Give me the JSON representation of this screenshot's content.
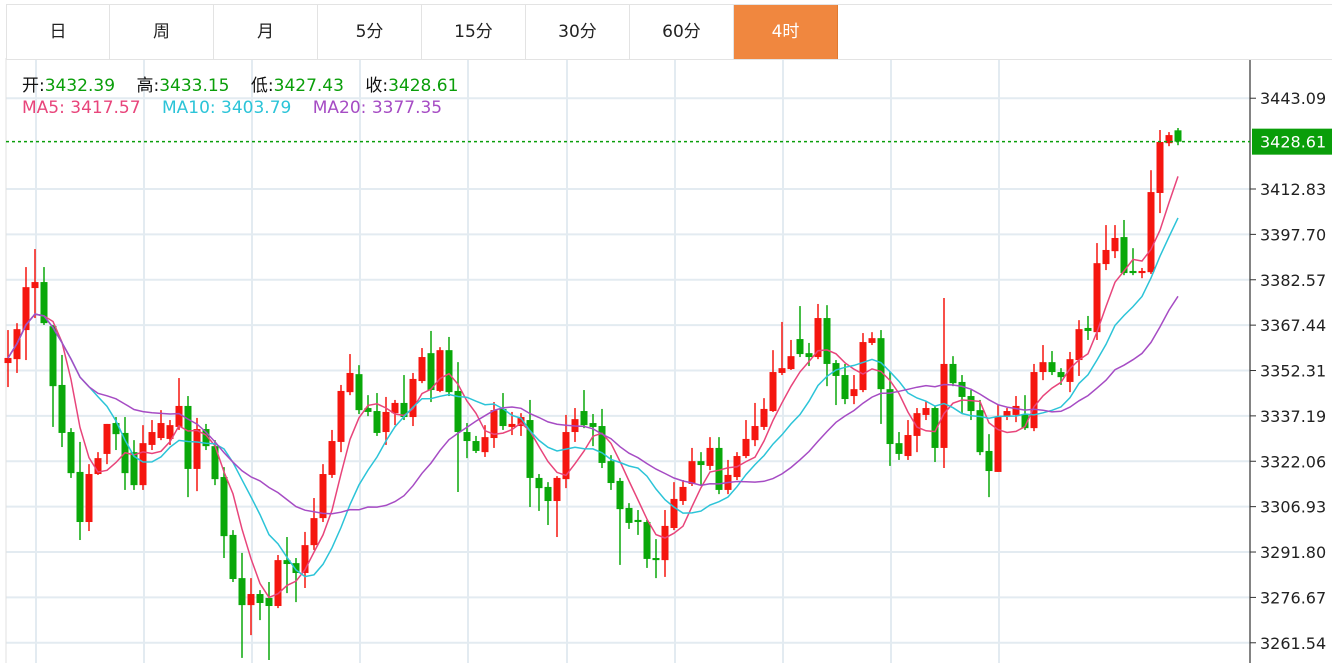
{
  "tabs": [
    {
      "label": "日",
      "active": false
    },
    {
      "label": "周",
      "active": false
    },
    {
      "label": "月",
      "active": false
    },
    {
      "label": "5分",
      "active": false
    },
    {
      "label": "15分",
      "active": false
    },
    {
      "label": "30分",
      "active": false
    },
    {
      "label": "60分",
      "active": false
    },
    {
      "label": "4时",
      "active": true
    }
  ],
  "ohlc_info": {
    "open_label": "开:",
    "open": "3432.39",
    "high_label": "高:",
    "high": "3433.15",
    "low_label": "低:",
    "low": "3427.43",
    "close_label": "收:",
    "close": "3428.61"
  },
  "ma_info": {
    "ma5_label": "MA5:",
    "ma5": "3417.57",
    "ma10_label": "MA10:",
    "ma10": "3403.79",
    "ma20_label": "MA20:",
    "ma20": "3377.35"
  },
  "colors": {
    "up": "#f5160f",
    "down": "#0aa80a",
    "ma5": "#e8457b",
    "ma10": "#2cc4d8",
    "ma20": "#a64cc4",
    "active_tab": "#f0873f",
    "price_tag": "#0a9e0a",
    "grid": "#e3ebf1"
  },
  "chart_data": {
    "type": "candlestick",
    "title": "",
    "ylim": [
      3254.8,
      3456.5
    ],
    "y_ticks": [
      "3443.09",
      "3412.83",
      "3397.70",
      "3382.57",
      "3367.44",
      "3352.31",
      "3337.19",
      "3322.06",
      "3306.93",
      "3291.80",
      "3276.67",
      "3261.54"
    ],
    "current_price": "3428.61",
    "ma_periods": [
      5,
      10,
      20
    ],
    "ohlc": [
      [
        3354.8,
        3365.8,
        3346.8,
        3356.5
      ],
      [
        3356.1,
        3368.1,
        3351.5,
        3366.1
      ],
      [
        3365.8,
        3386.8,
        3355.8,
        3380.1
      ],
      [
        3379.8,
        3392.8,
        3369.8,
        3381.8
      ],
      [
        3381.8,
        3386.8,
        3367.5,
        3368.1
      ],
      [
        3367.1,
        3367.5,
        3333.5,
        3347.1
      ],
      [
        3347.5,
        3357.5,
        3326.8,
        3331.5
      ],
      [
        3331.8,
        3333.1,
        3316.5,
        3318.1
      ],
      [
        3318.5,
        3328.5,
        3295.8,
        3301.8
      ],
      [
        3301.8,
        3321.1,
        3298.8,
        3317.8
      ],
      [
        3317.8,
        3325.1,
        3317.5,
        3323.1
      ],
      [
        3324.5,
        3334.5,
        3321.1,
        3334.5
      ],
      [
        3334.8,
        3336.8,
        3325.8,
        3331.1
      ],
      [
        3331.5,
        3336.8,
        3312.5,
        3318.1
      ],
      [
        3325.1,
        3329.1,
        3312.5,
        3314.1
      ],
      [
        3314.1,
        3334.1,
        3312.5,
        3328.1
      ],
      [
        3327.5,
        3335.8,
        3325.8,
        3331.8
      ],
      [
        3329.8,
        3339.1,
        3329.1,
        3334.8
      ],
      [
        3329.5,
        3335.8,
        3327.5,
        3334.1
      ],
      [
        3333.5,
        3349.8,
        3332.5,
        3340.5
      ],
      [
        3340.5,
        3343.8,
        3310.1,
        3319.5
      ],
      [
        3319.5,
        3336.5,
        3312.1,
        3332.8
      ],
      [
        3332.8,
        3334.5,
        3325.8,
        3327.1
      ],
      [
        3327.1,
        3329.1,
        3314.1,
        3316.1
      ],
      [
        3316.8,
        3320.1,
        3289.8,
        3297.1
      ],
      [
        3297.5,
        3299.1,
        3281.8,
        3282.8
      ],
      [
        3283.1,
        3291.5,
        3256.5,
        3274.1
      ],
      [
        3274.1,
        3283.1,
        3264.1,
        3277.8
      ],
      [
        3277.8,
        3279.1,
        3269.1,
        3274.8
      ],
      [
        3276.5,
        3281.8,
        3255.8,
        3273.8
      ],
      [
        3273.8,
        3290.8,
        3273.1,
        3289.1
      ],
      [
        3289.1,
        3296.8,
        3278.1,
        3287.8
      ],
      [
        3288.1,
        3289.8,
        3275.1,
        3284.8
      ],
      [
        3284.8,
        3298.5,
        3279.8,
        3294.1
      ],
      [
        3294.1,
        3309.8,
        3292.5,
        3303.1
      ],
      [
        3303.1,
        3321.1,
        3301.8,
        3317.8
      ],
      [
        3317.5,
        3332.5,
        3316.5,
        3328.8
      ],
      [
        3328.5,
        3347.5,
        3325.1,
        3345.5
      ],
      [
        3345.1,
        3357.8,
        3344.1,
        3351.5
      ],
      [
        3351.1,
        3354.1,
        3337.8,
        3339.1
      ],
      [
        3339.8,
        3344.1,
        3337.1,
        3338.5
      ],
      [
        3338.8,
        3344.8,
        3330.5,
        3331.5
      ],
      [
        3331.8,
        3343.5,
        3327.5,
        3338.5
      ],
      [
        3338.1,
        3342.5,
        3334.1,
        3341.5
      ],
      [
        3341.5,
        3350.8,
        3335.8,
        3336.8
      ],
      [
        3336.8,
        3351.5,
        3333.8,
        3349.5
      ],
      [
        3348.8,
        3359.8,
        3348.1,
        3356.8
      ],
      [
        3358.1,
        3365.5,
        3341.8,
        3345.8
      ],
      [
        3345.5,
        3360.1,
        3345.1,
        3359.1
      ],
      [
        3359.1,
        3363.5,
        3343.8,
        3345.1
      ],
      [
        3345.5,
        3355.1,
        3311.8,
        3331.8
      ],
      [
        3331.8,
        3334.8,
        3323.1,
        3328.8
      ],
      [
        3328.8,
        3330.5,
        3324.8,
        3325.5
      ],
      [
        3325.1,
        3334.1,
        3323.5,
        3330.1
      ],
      [
        3329.8,
        3341.8,
        3326.5,
        3339.1
      ],
      [
        3339.5,
        3344.8,
        3332.5,
        3333.8
      ],
      [
        3333.5,
        3338.5,
        3330.8,
        3334.5
      ],
      [
        3333.8,
        3338.1,
        3330.5,
        3336.8
      ],
      [
        3335.8,
        3342.5,
        3306.8,
        3316.5
      ],
      [
        3316.5,
        3317.8,
        3305.5,
        3313.1
      ],
      [
        3313.5,
        3315.1,
        3300.8,
        3308.8
      ],
      [
        3308.8,
        3317.1,
        3296.8,
        3316.5
      ],
      [
        3316.1,
        3337.5,
        3313.1,
        3331.8
      ],
      [
        3331.8,
        3339.8,
        3328.5,
        3336.1
      ],
      [
        3338.8,
        3345.8,
        3333.1,
        3334.1
      ],
      [
        3334.8,
        3337.8,
        3327.1,
        3333.5
      ],
      [
        3333.8,
        3339.5,
        3319.8,
        3321.5
      ],
      [
        3322.1,
        3324.1,
        3312.5,
        3314.8
      ],
      [
        3315.5,
        3316.5,
        3287.5,
        3306.1
      ],
      [
        3306.5,
        3308.1,
        3299.5,
        3301.5
      ],
      [
        3302.5,
        3305.8,
        3297.5,
        3301.8
      ],
      [
        3301.8,
        3302.5,
        3286.5,
        3289.5
      ],
      [
        3289.8,
        3296.1,
        3283.1,
        3289.1
      ],
      [
        3289.1,
        3305.8,
        3283.5,
        3300.5
      ],
      [
        3299.8,
        3315.1,
        3299.1,
        3309.5
      ],
      [
        3308.8,
        3315.8,
        3307.5,
        3313.5
      ],
      [
        3314.5,
        3326.5,
        3313.8,
        3322.1
      ],
      [
        3322.1,
        3325.1,
        3313.8,
        3320.8
      ],
      [
        3320.5,
        3330.1,
        3319.1,
        3326.5
      ],
      [
        3326.5,
        3330.1,
        3311.1,
        3312.5
      ],
      [
        3312.5,
        3322.5,
        3311.1,
        3317.5
      ],
      [
        3316.8,
        3325.1,
        3315.8,
        3323.8
      ],
      [
        3323.8,
        3335.8,
        3323.1,
        3329.5
      ],
      [
        3329.1,
        3341.5,
        3327.1,
        3333.8
      ],
      [
        3333.5,
        3343.1,
        3332.5,
        3339.5
      ],
      [
        3338.8,
        3359.1,
        3338.5,
        3351.8
      ],
      [
        3351.5,
        3368.5,
        3350.8,
        3353.1
      ],
      [
        3352.8,
        3362.5,
        3352.5,
        3357.1
      ],
      [
        3362.8,
        3373.8,
        3356.8,
        3357.8
      ],
      [
        3358.1,
        3361.5,
        3353.8,
        3356.8
      ],
      [
        3356.8,
        3374.5,
        3356.1,
        3369.8
      ],
      [
        3369.8,
        3374.1,
        3347.1,
        3354.5
      ],
      [
        3354.8,
        3355.8,
        3340.8,
        3350.5
      ],
      [
        3350.8,
        3354.5,
        3341.1,
        3342.8
      ],
      [
        3343.8,
        3350.8,
        3341.1,
        3346.1
      ],
      [
        3345.8,
        3364.8,
        3345.1,
        3361.8
      ],
      [
        3361.5,
        3365.1,
        3360.8,
        3363.1
      ],
      [
        3363.1,
        3365.8,
        3334.5,
        3346.1
      ],
      [
        3346.1,
        3351.8,
        3320.5,
        3327.8
      ],
      [
        3328.1,
        3331.8,
        3322.5,
        3324.5
      ],
      [
        3323.8,
        3335.8,
        3322.5,
        3330.8
      ],
      [
        3330.5,
        3339.8,
        3325.1,
        3338.1
      ],
      [
        3337.5,
        3342.1,
        3335.8,
        3339.8
      ],
      [
        3339.8,
        3340.5,
        3321.8,
        3326.5
      ],
      [
        3326.5,
        3376.5,
        3319.8,
        3354.5
      ],
      [
        3354.5,
        3357.1,
        3347.1,
        3348.1
      ],
      [
        3348.5,
        3350.8,
        3338.1,
        3343.5
      ],
      [
        3343.8,
        3345.8,
        3335.8,
        3338.8
      ],
      [
        3339.1,
        3342.5,
        3324.1,
        3325.1
      ],
      [
        3325.5,
        3331.1,
        3310.1,
        3318.8
      ],
      [
        3318.5,
        3340.8,
        3318.5,
        3336.8
      ],
      [
        3337.1,
        3339.8,
        3335.8,
        3338.8
      ],
      [
        3337.5,
        3343.8,
        3335.1,
        3340.5
      ],
      [
        3337.8,
        3344.1,
        3332.5,
        3333.1
      ],
      [
        3333.1,
        3354.5,
        3332.1,
        3351.8
      ],
      [
        3351.8,
        3360.8,
        3349.1,
        3355.1
      ],
      [
        3355.1,
        3358.8,
        3350.8,
        3351.8
      ],
      [
        3351.8,
        3353.1,
        3347.5,
        3350.1
      ],
      [
        3348.5,
        3358.5,
        3345.1,
        3356.1
      ],
      [
        3355.8,
        3369.1,
        3350.5,
        3366.1
      ],
      [
        3366.5,
        3370.5,
        3362.5,
        3365.5
      ],
      [
        3365.1,
        3394.8,
        3362.5,
        3388.1
      ],
      [
        3387.8,
        3400.8,
        3385.8,
        3392.5
      ],
      [
        3392.1,
        3400.8,
        3389.8,
        3396.5
      ],
      [
        3396.8,
        3402.5,
        3384.1,
        3384.8
      ],
      [
        3385.5,
        3393.1,
        3384.1,
        3384.8
      ],
      [
        3384.8,
        3386.5,
        3383.1,
        3385.5
      ],
      [
        3385.1,
        3419.1,
        3384.5,
        3411.8
      ],
      [
        3411.5,
        3432.5,
        3404.8,
        3428.5
      ],
      [
        3428.1,
        3431.8,
        3427.1,
        3430.8
      ],
      [
        3432.39,
        3433.15,
        3427.43,
        3428.61
      ]
    ]
  }
}
